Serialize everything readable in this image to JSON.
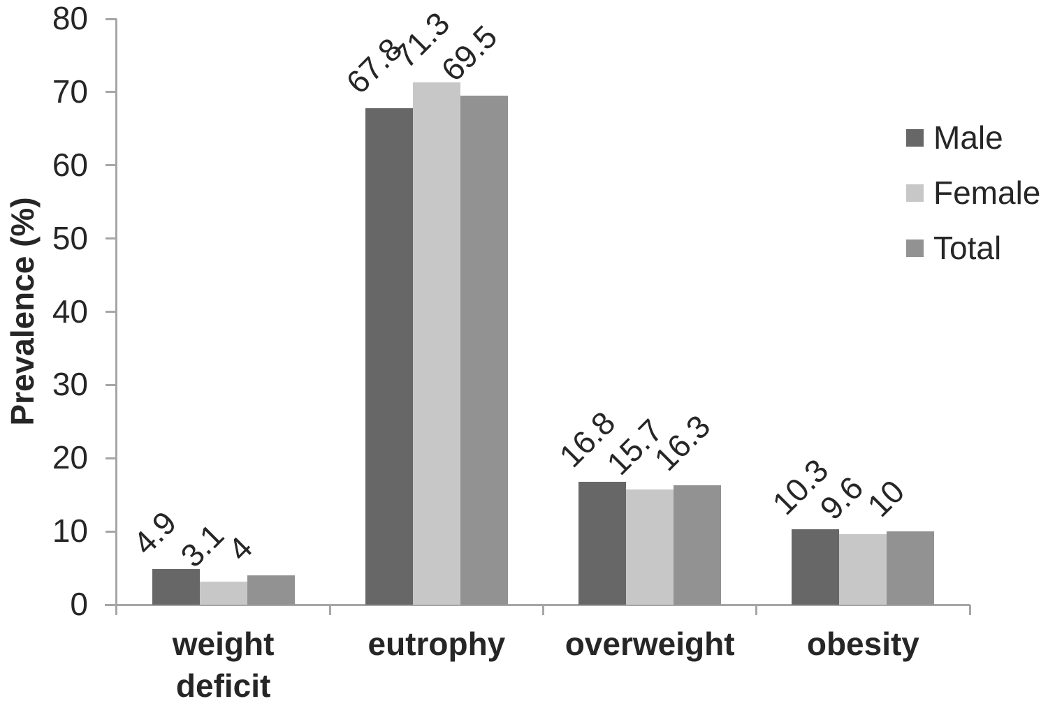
{
  "chart_data": {
    "type": "bar",
    "title": "",
    "xlabel": "",
    "ylabel": "Prevalence (%)",
    "ylim": [
      0,
      80
    ],
    "yticks": [
      0,
      10,
      20,
      30,
      40,
      50,
      60,
      70,
      80
    ],
    "grid": false,
    "legend_position": "right",
    "bar_value_labels_rotation_deg": 45,
    "categories": [
      "weight\ndeficit",
      "eutrophy",
      "overweight",
      "obesity"
    ],
    "series": [
      {
        "name": "Male",
        "color": "#676767",
        "values": [
          4.9,
          67.8,
          16.8,
          10.3
        ]
      },
      {
        "name": "Female",
        "color": "#c7c7c7",
        "values": [
          3.1,
          71.3,
          15.7,
          9.6
        ]
      },
      {
        "name": "Total",
        "color": "#929292",
        "values": [
          4,
          69.5,
          16.3,
          10
        ]
      }
    ],
    "value_labels": [
      [
        "4.9",
        "67.8",
        "16.8",
        "10.3"
      ],
      [
        "3.1",
        "71.3",
        "15.7",
        "9.6"
      ],
      [
        "4",
        "69.5",
        "16.3",
        "10"
      ]
    ],
    "axis_color": "#a6a6a6",
    "text_color": "#262626"
  }
}
